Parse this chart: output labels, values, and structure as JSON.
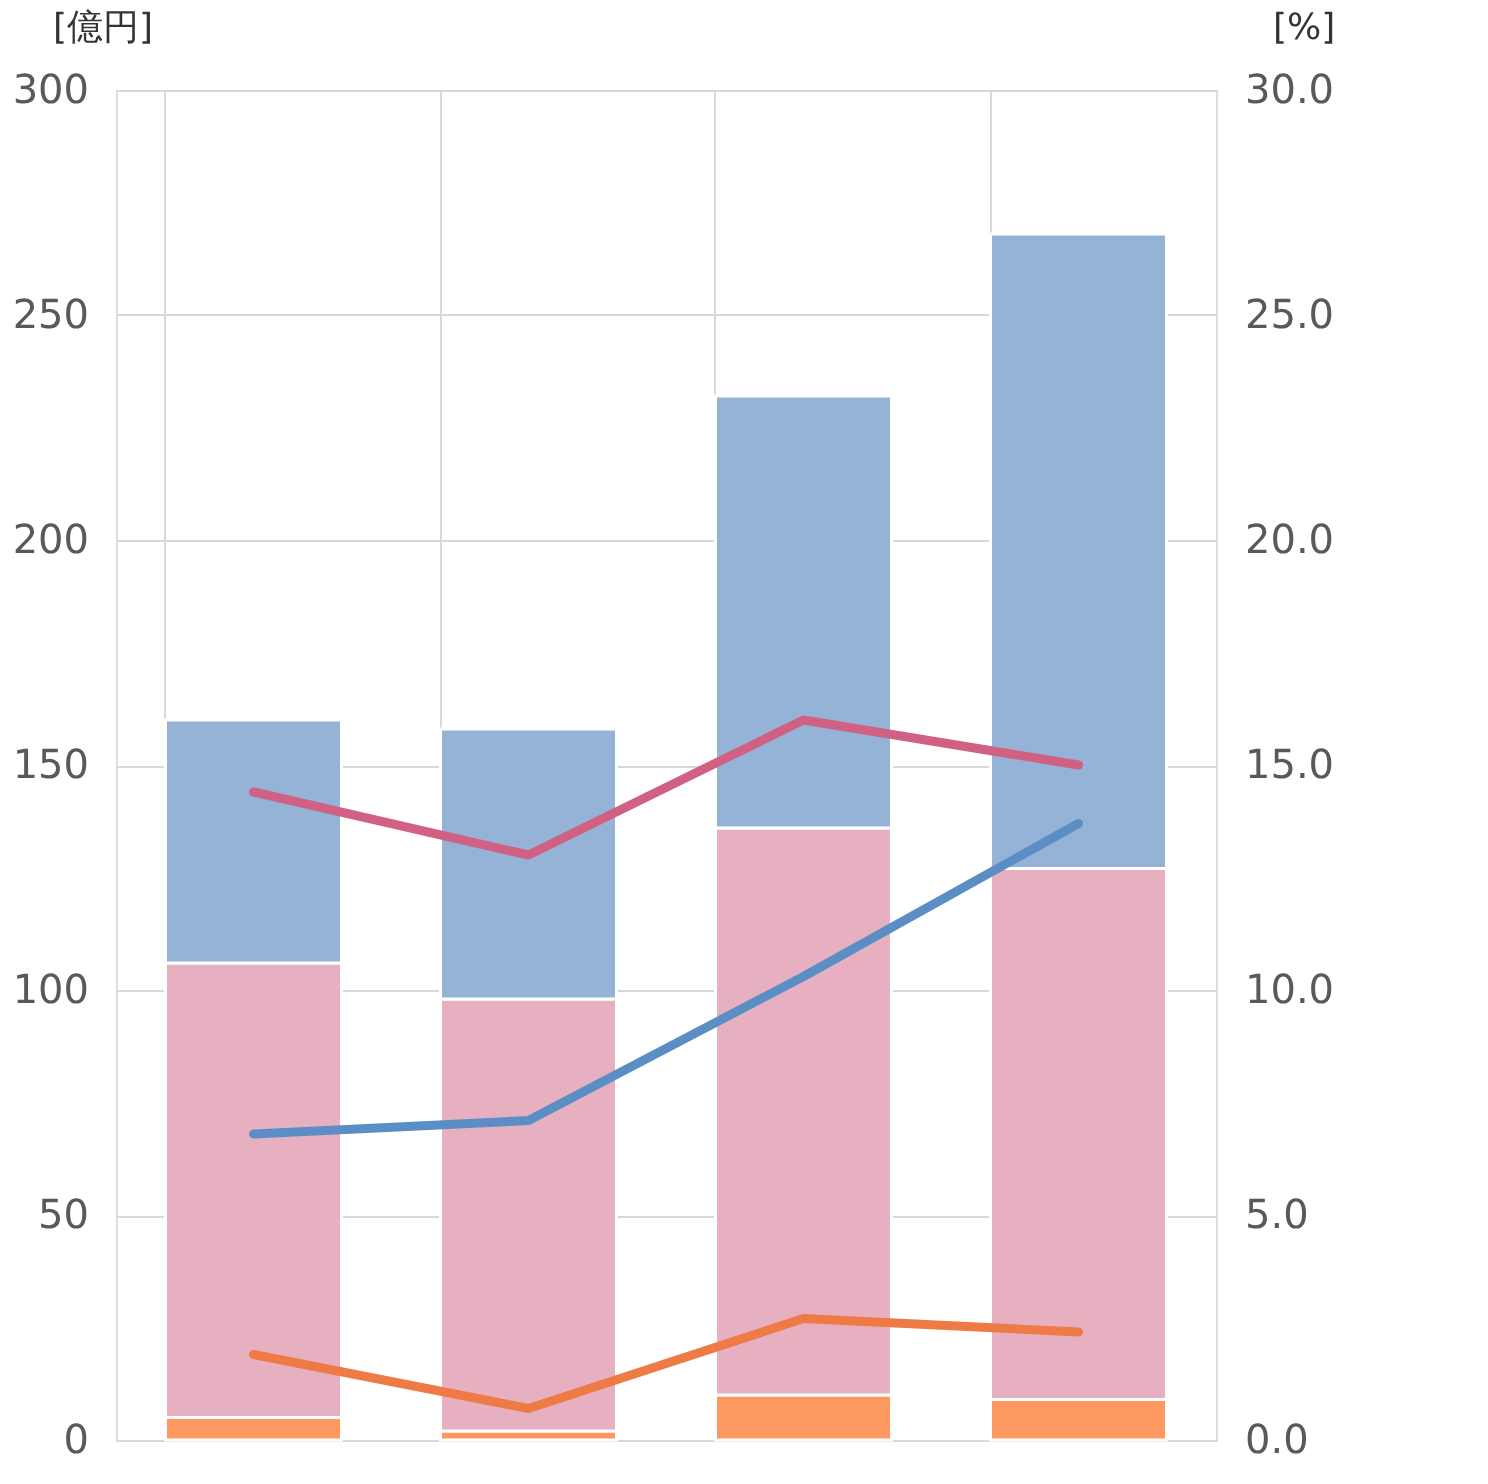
{
  "chart_data": {
    "type": "bar",
    "stacked": true,
    "grid": true,
    "ylabel": "[億円]",
    "y2label": "[%]",
    "categories": [
      null,
      null,
      null,
      null
    ],
    "ylim": [
      0,
      300
    ],
    "yticks": [
      0,
      50,
      100,
      150,
      200,
      250,
      300
    ],
    "y2lim": [
      0,
      30
    ],
    "y2ticks": [
      {
        "value": 0,
        "label": "0.0"
      },
      {
        "value": 5,
        "label": "5.0"
      },
      {
        "value": 10,
        "label": "10.0"
      },
      {
        "value": 15,
        "label": "15.0"
      },
      {
        "value": 20,
        "label": "20.0"
      },
      {
        "value": 25,
        "label": "25.0"
      },
      {
        "value": 30,
        "label": "30.0"
      }
    ],
    "series": [
      {
        "color": "#fd9860",
        "values": [
          5,
          2,
          10,
          9
        ]
      },
      {
        "color": "#e6b0c1",
        "values": [
          101,
          96,
          126,
          118
        ]
      },
      {
        "color": "#95b3d7",
        "values": [
          54,
          60,
          96,
          141
        ]
      },
      {
        "type": "line",
        "axis": "y2",
        "color": "#d06183",
        "values": [
          14.4,
          13.0,
          16.0,
          15.0
        ]
      },
      {
        "type": "line",
        "axis": "y2",
        "color": "#5b8ec4",
        "values": [
          6.8,
          7.1,
          10.3,
          13.7
        ]
      },
      {
        "type": "line",
        "axis": "y2",
        "color": "#ee7a45",
        "values": [
          1.9,
          0.7,
          2.7,
          2.4
        ]
      }
    ]
  }
}
